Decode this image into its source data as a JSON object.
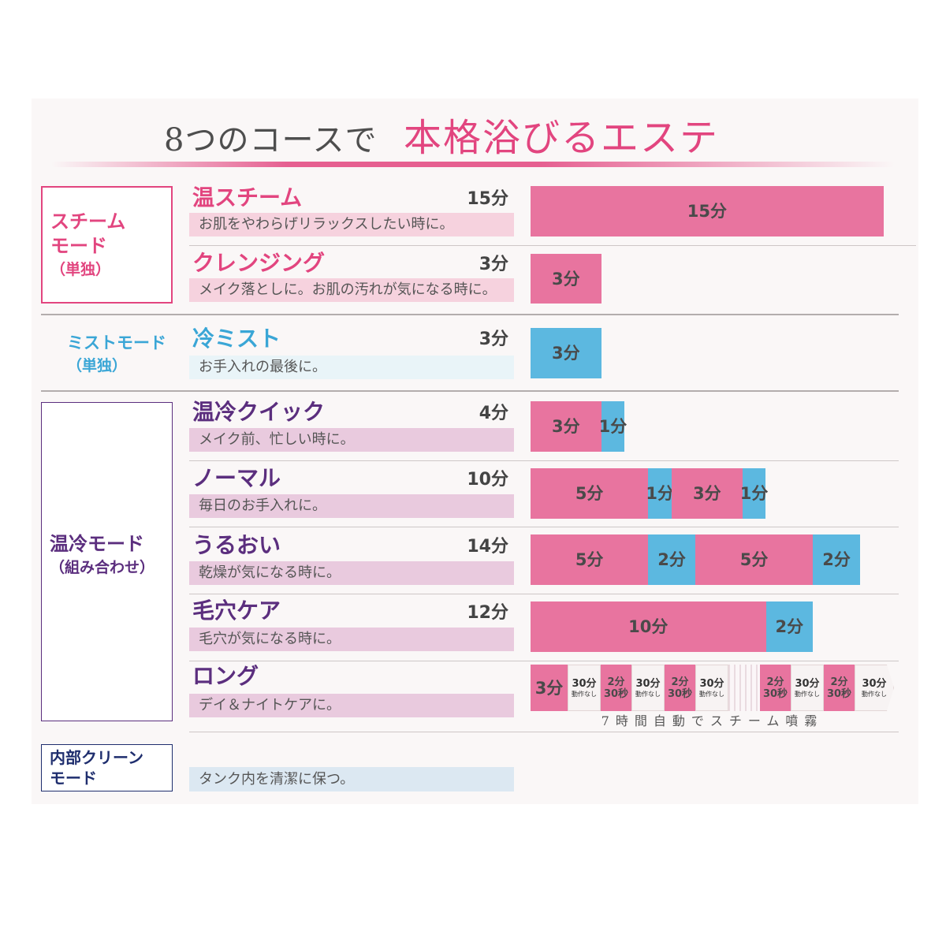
{
  "title": {
    "lead": "8つのコースで",
    "main": "本格浴びるエステ"
  },
  "colors": {
    "accent_pink": "#e2457f",
    "mist_text": "#3aa6d6",
    "combo_text": "#5b2e7e",
    "clean_text": "#1f2e6e"
  },
  "modes": {
    "steam": {
      "lines": [
        "スチーム",
        "モード",
        "（単独）"
      ]
    },
    "mist": {
      "lines": [
        "ミストモード",
        "（単独）"
      ]
    },
    "combo": {
      "lines": [
        "温冷モード",
        "（組み合わせ）"
      ]
    },
    "clean": {
      "lines": [
        "内部クリーン",
        "モード"
      ],
      "desc": "タンク内を清潔に保つ。"
    }
  },
  "courses": [
    {
      "total": "15分",
      "desc": "お肌をやわらげリラックスしたい時に。"
    },
    {
      "total": "3分",
      "desc": "メイク落としに。お肌の汚れが気になる時に。"
    },
    {
      "total": "3分",
      "desc": "お手入れの最後に。"
    },
    {
      "total": "4分",
      "desc": "メイク前、忙しい時に。"
    },
    {
      "total": "10分",
      "desc": "毎日のお手入れに。"
    },
    {
      "total": "14分",
      "desc": "乾燥が気になる時に。"
    },
    {
      "total": "12分",
      "desc": "毛穴が気になる時に。"
    },
    {
      "desc": "デイ＆ナイトケアに。"
    }
  ],
  "chart_data": {
    "type": "bar",
    "orientation": "horizontal",
    "stacked": true,
    "categories": [
      "温スチーム",
      "クレンジング",
      "冷ミスト",
      "温冷クイック",
      "ノーマル",
      "うるおい",
      "毛穴ケア",
      "ロング"
    ],
    "bars": [
      [
        {
          "minutes": 15,
          "label": "15分",
          "color": "#e8749f"
        }
      ],
      [
        {
          "minutes": 3,
          "label": "3分",
          "color": "#e8749f"
        }
      ],
      [
        {
          "minutes": 3,
          "label": "3分",
          "color": "#5cb8e0"
        }
      ],
      [
        {
          "minutes": 3,
          "label": "3分",
          "color": "#e8749f"
        },
        {
          "minutes": 1,
          "label": "1分",
          "color": "#5cb8e0"
        }
      ],
      [
        {
          "minutes": 5,
          "label": "5分",
          "color": "#e8749f"
        },
        {
          "minutes": 1,
          "label": "1分",
          "color": "#5cb8e0"
        },
        {
          "minutes": 3,
          "label": "3分",
          "color": "#e8749f"
        },
        {
          "minutes": 1,
          "label": "1分",
          "color": "#5cb8e0"
        }
      ],
      [
        {
          "minutes": 5,
          "label": "5分",
          "color": "#e8749f"
        },
        {
          "minutes": 2,
          "label": "2分",
          "color": "#5cb8e0"
        },
        {
          "minutes": 5,
          "label": "5分",
          "color": "#e8749f"
        },
        {
          "minutes": 2,
          "label": "2分",
          "color": "#5cb8e0"
        }
      ],
      [
        {
          "minutes": 10,
          "label": "10分",
          "color": "#e8749f"
        },
        {
          "minutes": 2,
          "label": "2分",
          "color": "#5cb8e0"
        }
      ],
      [
        {
          "minutes": 3,
          "label": "3分",
          "color": "#e8749f"
        },
        {
          "minutes": 30,
          "label": "30分",
          "sub": "動作なし",
          "color": "#f7f3f3"
        },
        {
          "minutes": 2.5,
          "label": "2分",
          "sub": "30秒",
          "color": "#e8749f"
        },
        {
          "minutes": 30,
          "label": "30分",
          "sub": "動作なし",
          "color": "#f7f3f3"
        },
        {
          "minutes": 2.5,
          "label": "2分",
          "sub": "30秒",
          "color": "#e8749f"
        },
        {
          "minutes": 30,
          "label": "30分",
          "sub": "動作なし",
          "color": "#f7f3f3"
        },
        {
          "break": true
        },
        {
          "minutes": 2.5,
          "label": "2分",
          "sub": "30秒",
          "color": "#e8749f"
        },
        {
          "minutes": 30,
          "label": "30分",
          "sub": "動作なし",
          "color": "#f7f3f3"
        },
        {
          "minutes": 2.5,
          "label": "2分",
          "sub": "30秒",
          "color": "#e8749f"
        },
        {
          "minutes": 30,
          "label": "30分",
          "sub": "動作なし",
          "color": "#f7f3f3"
        }
      ]
    ],
    "note": "7時間自動でスチーム噴霧"
  }
}
